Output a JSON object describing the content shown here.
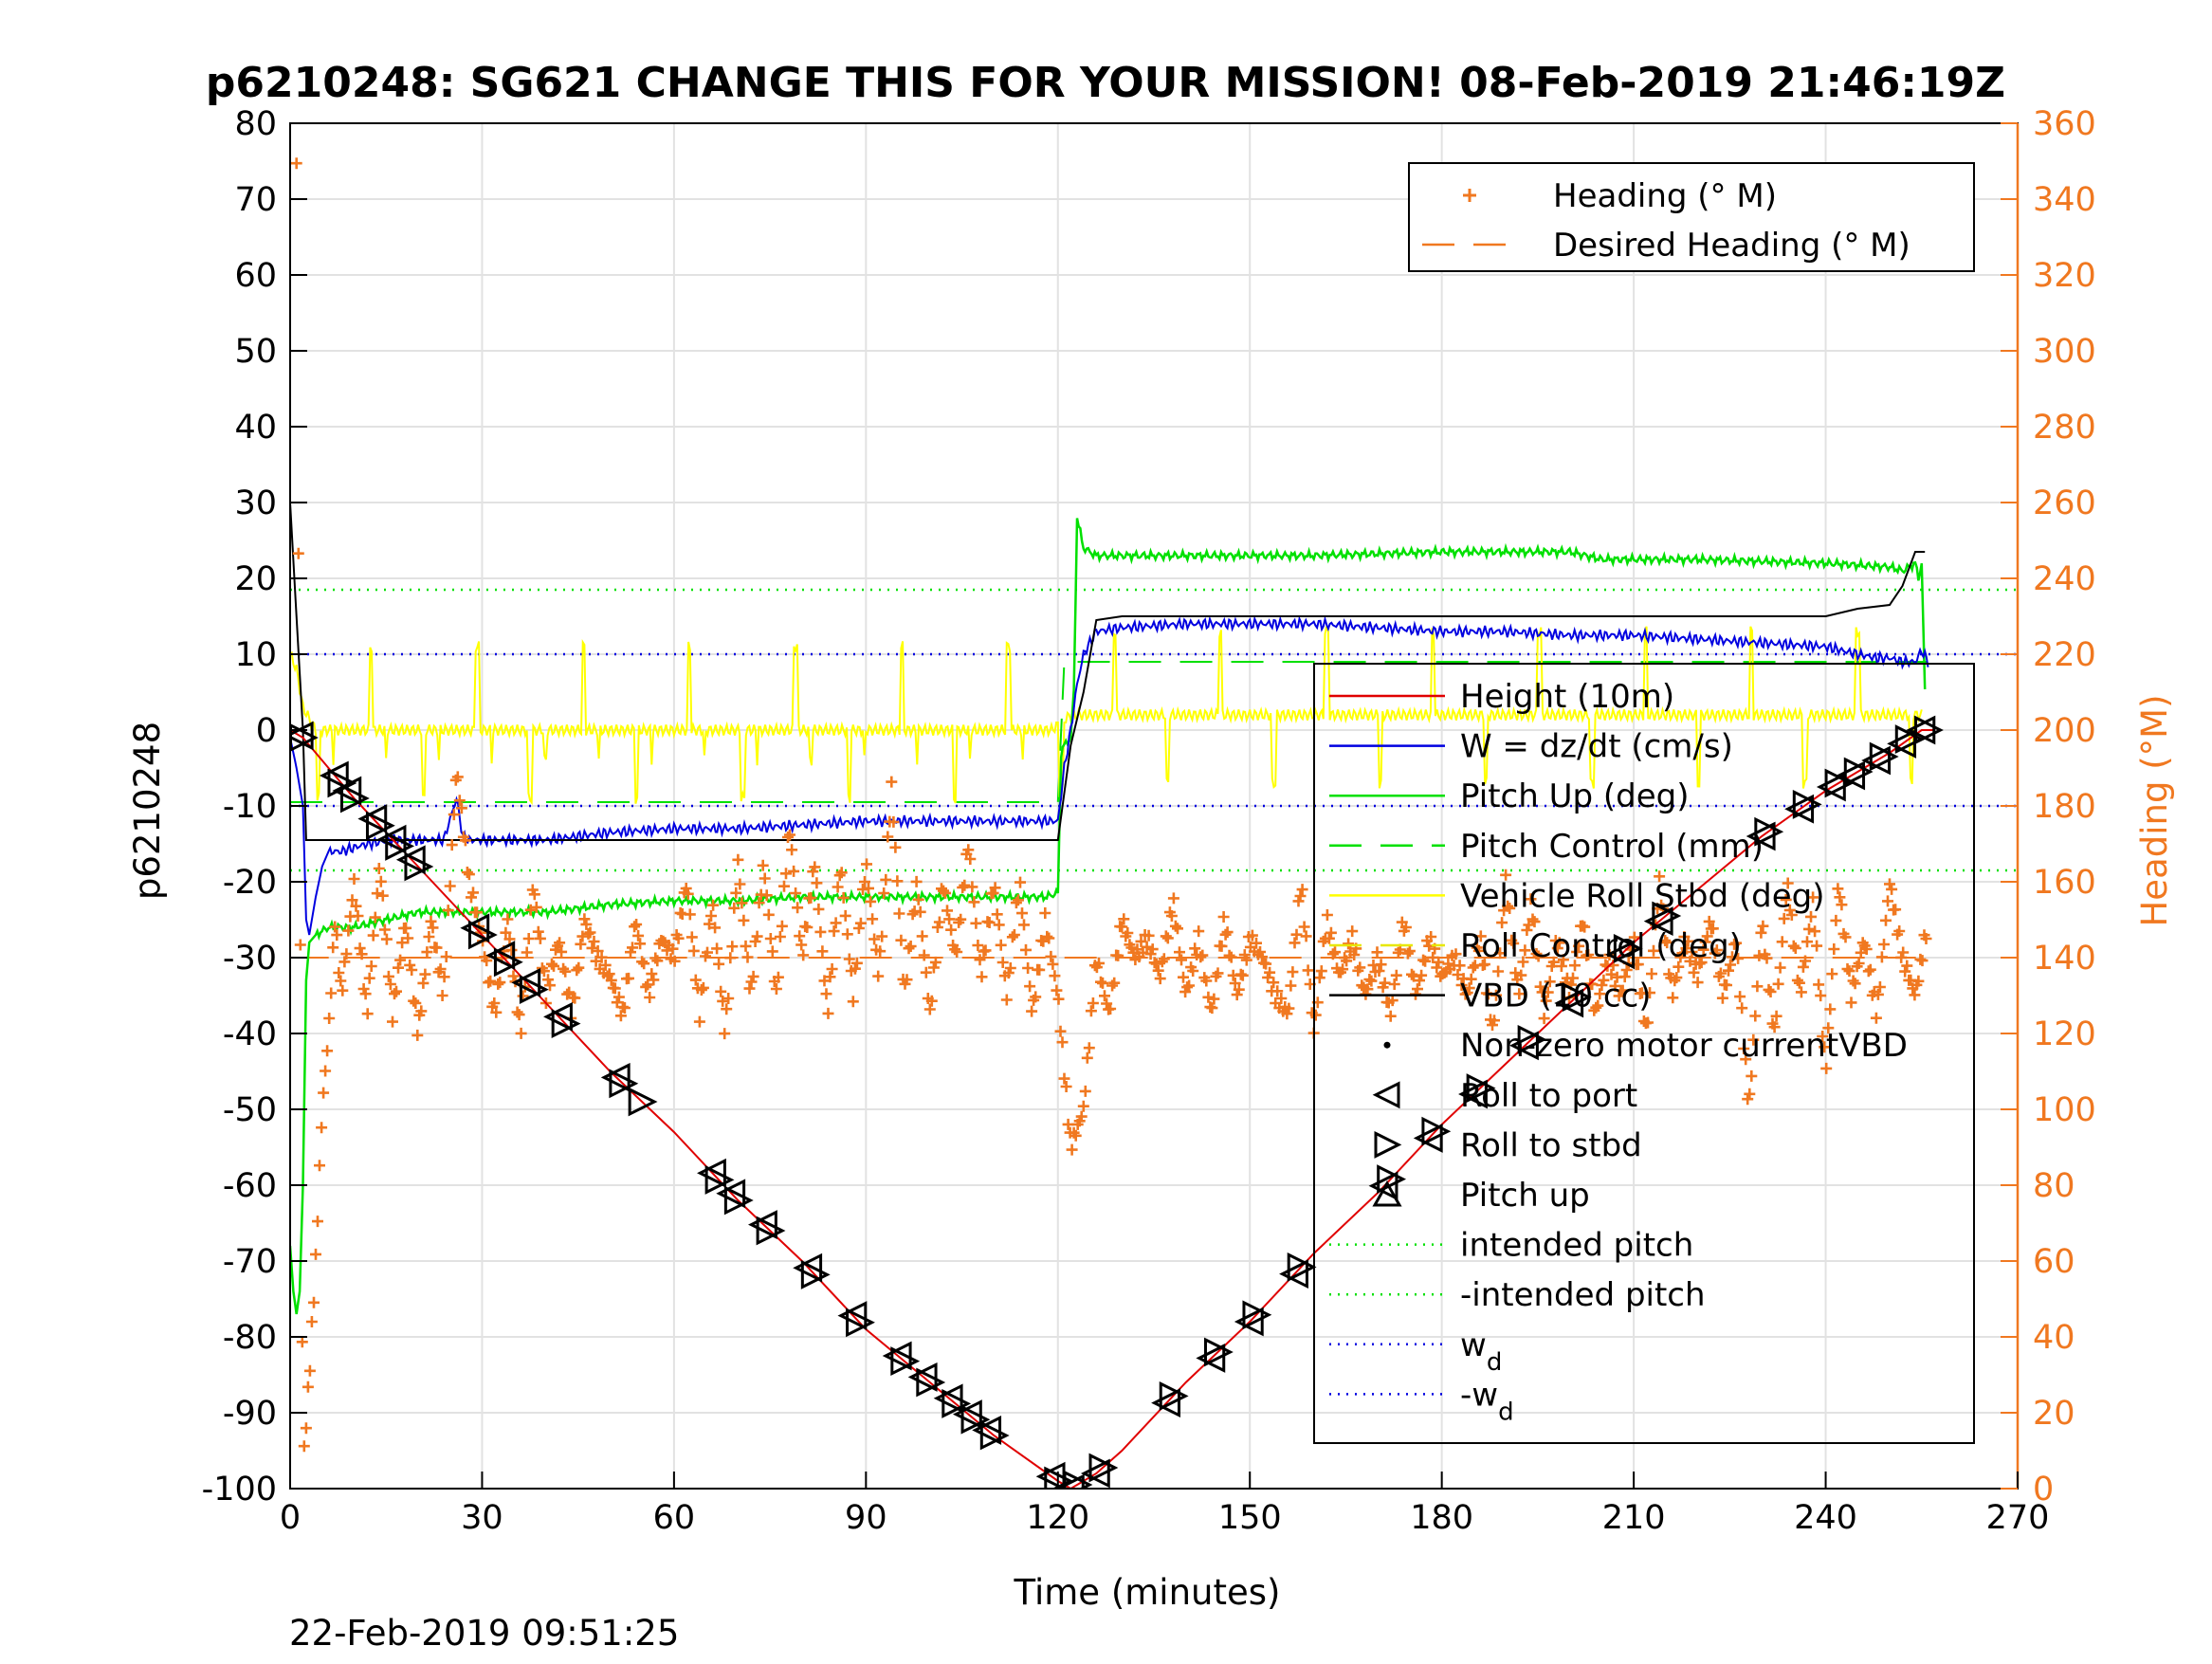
{
  "chart_data": {
    "type": "line",
    "title": "p6210248: SG621 CHANGE THIS FOR YOUR MISSION! 08-Feb-2019 21:46:19Z",
    "timestamp": "22-Feb-2019 09:51:25",
    "xlabel": "Time (minutes)",
    "ylabel": "p6210248",
    "y2label": "Heading (°M)",
    "xlim": [
      0,
      270
    ],
    "ylim": [
      -100,
      80
    ],
    "y2lim": [
      0,
      360
    ],
    "xticks": [
      0,
      30,
      60,
      90,
      120,
      150,
      180,
      210,
      240,
      270
    ],
    "yticks": [
      80,
      70,
      60,
      50,
      40,
      30,
      20,
      10,
      0,
      -10,
      -20,
      -30,
      -40,
      -50,
      -60,
      -70,
      -80,
      -90,
      -100
    ],
    "y2ticks": [
      360,
      340,
      320,
      300,
      280,
      260,
      240,
      220,
      200,
      180,
      160,
      140,
      120,
      100,
      80,
      60,
      40,
      20,
      0
    ],
    "grid": true,
    "colors": {
      "height": "#e00000",
      "w": "#0000e0",
      "pitch": "#00e000",
      "pitch_control": "#00e000",
      "roll": "#ffff00",
      "roll_control": "#e8e800",
      "vbd": "#000000",
      "heading": "#f07820",
      "intended_pitch": "#00e000",
      "wd": "#0000e0"
    },
    "legend_right_axis": [
      {
        "label": "Heading (° M)",
        "style": "plus",
        "color": "#f07820"
      },
      {
        "label": "Desired Heading (° M)",
        "style": "dash",
        "color": "#f07820"
      }
    ],
    "legend_right_axis_position": "top-right",
    "legend_left_axis": [
      {
        "label": "Height (10m)",
        "style": "solid",
        "color": "#e00000"
      },
      {
        "label": "W = dz/dt (cm/s)",
        "style": "solid",
        "color": "#0000e0"
      },
      {
        "label": "Pitch Up (deg)",
        "style": "solid",
        "color": "#00e000"
      },
      {
        "label": "Pitch Control (mm)",
        "style": "dash",
        "color": "#00e000"
      },
      {
        "label": "Vehicle Roll Stbd (deg)",
        "style": "solid",
        "color": "#ffff00"
      },
      {
        "label": "Roll Control (deg)",
        "style": "dash",
        "color": "#e8e800"
      },
      {
        "label": "VBD (10 cc)",
        "style": "solid",
        "color": "#000000"
      },
      {
        "label": "Non-zero motor currentVBD",
        "style": "dot",
        "color": "#000000"
      },
      {
        "label": "Roll to port",
        "style": "tri-left",
        "color": "#000000"
      },
      {
        "label": "Roll to stbd",
        "style": "tri-right",
        "color": "#000000"
      },
      {
        "label": "Pitch up",
        "style": "tri-up",
        "color": "#000000"
      },
      {
        "label": "intended pitch",
        "style": "dotted",
        "color": "#00e000"
      },
      {
        "label": "-intended pitch",
        "style": "dotted",
        "color": "#00e000"
      },
      {
        "label": "w",
        "sub": "d",
        "style": "dotted",
        "color": "#0000e0"
      },
      {
        "label": "-w",
        "sub": "d",
        "style": "dotted",
        "color": "#0000e0"
      }
    ],
    "legend_left_axis_position": "right",
    "series": {
      "height": {
        "x": [
          0,
          2,
          10,
          20,
          30,
          40,
          50,
          60,
          70,
          80,
          90,
          100,
          110,
          120,
          122,
          126,
          130,
          140,
          150,
          160,
          170,
          180,
          190,
          200,
          210,
          220,
          230,
          240,
          250,
          255,
          257
        ],
        "y": [
          0,
          -1,
          -9,
          -18,
          -27,
          -36,
          -45,
          -53,
          -62,
          -70,
          -79,
          -86,
          -93,
          -99,
          -100,
          -98,
          -95,
          -86,
          -78,
          -69,
          -61,
          -52,
          -44,
          -36,
          -28,
          -21,
          -14,
          -8,
          -3,
          0,
          0
        ]
      },
      "w": {
        "x": [
          0,
          1,
          2,
          2.5,
          3,
          4,
          5,
          6,
          8,
          12,
          16,
          20,
          24,
          26,
          27,
          28,
          32,
          40,
          50,
          60,
          70,
          80,
          90,
          100,
          110,
          118,
          120,
          121,
          122,
          123,
          124,
          126,
          130,
          140,
          150,
          160,
          170,
          180,
          190,
          200,
          210,
          220,
          230,
          240,
          245,
          248,
          250,
          252,
          254,
          255,
          256
        ],
        "y": [
          -1,
          -5,
          -10,
          -25,
          -27,
          -22,
          -18,
          -16,
          -16,
          -15,
          -14.5,
          -14.5,
          -14.5,
          -9,
          -14,
          -14.5,
          -14.5,
          -14.5,
          -13.5,
          -13,
          -13,
          -12.5,
          -12,
          -12,
          -12,
          -12,
          -12,
          -5,
          0,
          6,
          10,
          13,
          13.5,
          14,
          14,
          14,
          13.5,
          13,
          13,
          12.5,
          12.5,
          12,
          11.5,
          11,
          10,
          9.5,
          9.5,
          9,
          9,
          10.5,
          9
        ]
      },
      "pitch": {
        "x": [
          0,
          0.5,
          1,
          1.5,
          2,
          2.5,
          3,
          4,
          6,
          10,
          20,
          30,
          40,
          50,
          60,
          70,
          80,
          90,
          100,
          110,
          118,
          120,
          120.5,
          121,
          122,
          122.5,
          123,
          124,
          126,
          140,
          160,
          180,
          200,
          205,
          220,
          240,
          250,
          252,
          254,
          254.5,
          255,
          255.5
        ],
        "y": [
          -68,
          -74,
          -77,
          -74,
          -60,
          -33,
          -28,
          -27,
          -26,
          -26,
          -24,
          -24,
          -24,
          -23,
          -22.5,
          -22.5,
          -22,
          -22,
          -22,
          -22,
          -22,
          -21.5,
          -3,
          -2,
          -1,
          5,
          28,
          24,
          23,
          23,
          23,
          23.5,
          23.5,
          22.5,
          22.5,
          22,
          21.5,
          21,
          22,
          20,
          22,
          5
        ]
      },
      "pitch_control": {
        "x": [
          0,
          120,
          121,
          256
        ],
        "y": [
          -9.5,
          -9.5,
          9,
          9
        ]
      },
      "roll": {
        "x": [
          0,
          1,
          2,
          4,
          8,
          20,
          50,
          80,
          110,
          119,
          122,
          130,
          160,
          190,
          220,
          240,
          250,
          255
        ],
        "y": [
          10,
          8,
          3,
          0,
          0,
          0,
          0,
          0,
          0,
          0,
          2,
          2,
          2,
          2,
          2,
          2,
          2,
          2
        ]
      },
      "vbd": {
        "x": [
          0,
          1,
          2,
          2.5,
          120,
          122,
          124,
          126,
          130,
          150,
          200,
          240,
          245,
          250,
          252,
          254,
          255.5
        ],
        "y": [
          30,
          15,
          0,
          -14.5,
          -14.5,
          -2,
          5,
          14.5,
          15,
          15,
          15,
          15,
          16,
          16.5,
          19,
          23.5,
          23.5
        ]
      },
      "heading": {
        "x": [
          1,
          2,
          3,
          4,
          5,
          6,
          7,
          8,
          10,
          12,
          14,
          16,
          18,
          20,
          22,
          24,
          26,
          28,
          30,
          32,
          34,
          36,
          38,
          40,
          42,
          44,
          46,
          48,
          50,
          52,
          54,
          56,
          58,
          60,
          62,
          64,
          66,
          68,
          70,
          72,
          74,
          76,
          78,
          80,
          82,
          84,
          86,
          88,
          90,
          92,
          94,
          96,
          98,
          100,
          102,
          104,
          106,
          108,
          110,
          112,
          114,
          116,
          118,
          120,
          122,
          124,
          126,
          128,
          130,
          132,
          134,
          136,
          138,
          140,
          142,
          144,
          146,
          148,
          150,
          152,
          154,
          156,
          158,
          160,
          162,
          164,
          166,
          168,
          170,
          172,
          174,
          176,
          178,
          180,
          182,
          184,
          186,
          188,
          190,
          192,
          194,
          196,
          198,
          200,
          202,
          204,
          206,
          208,
          210,
          212,
          214,
          216,
          218,
          220,
          222,
          224,
          226,
          228,
          230,
          232,
          234,
          236,
          238,
          240,
          242,
          244,
          246,
          248,
          250,
          252,
          254,
          256
        ],
        "y": [
          350,
          5,
          30,
          60,
          100,
          120,
          150,
          130,
          160,
          125,
          165,
          125,
          150,
          120,
          150,
          130,
          190,
          160,
          145,
          125,
          150,
          120,
          160,
          130,
          145,
          125,
          150,
          140,
          135,
          125,
          150,
          130,
          145,
          140,
          160,
          125,
          155,
          120,
          165,
          130,
          165,
          130,
          175,
          140,
          165,
          125,
          165,
          130,
          165,
          135,
          185,
          130,
          160,
          125,
          160,
          140,
          170,
          135,
          160,
          130,
          160,
          125,
          150,
          130,
          90,
          100,
          140,
          125,
          150,
          140,
          145,
          135,
          155,
          130,
          145,
          125,
          150,
          130,
          145,
          140,
          130,
          125,
          160,
          120,
          150,
          135,
          145,
          130,
          140,
          125,
          150,
          130,
          145,
          135,
          140,
          130,
          145,
          120,
          160,
          130,
          155,
          125,
          145,
          130,
          150,
          125,
          140,
          130,
          145,
          120,
          160,
          130,
          145,
          135,
          150,
          130,
          145,
          100,
          150,
          120,
          160,
          130,
          155,
          110,
          160,
          130,
          145,
          125,
          160,
          140,
          130,
          150
        ]
      },
      "desired_heading": {
        "x": [
          1,
          256
        ],
        "y": [
          140,
          140
        ]
      },
      "intended_pitch": {
        "y": [
          18.5,
          -18.5
        ]
      },
      "wd": {
        "y": [
          10,
          -10
        ]
      },
      "roll_to_port_x": [
        1.5,
        7,
        9,
        13,
        16,
        19,
        29,
        33,
        37,
        42,
        51,
        66,
        69,
        74,
        81,
        88,
        95,
        99,
        103,
        106,
        109,
        119,
        122,
        126,
        137,
        144,
        150,
        157,
        171,
        178,
        185,
        193,
        200,
        208,
        214,
        230,
        236,
        241,
        244,
        248,
        252,
        255
      ],
      "roll_to_stbd_x": [
        2,
        8,
        10,
        14,
        17,
        20,
        30,
        34,
        38,
        43,
        52,
        55,
        67,
        70,
        75,
        82,
        89,
        96,
        100,
        104,
        107,
        110,
        120,
        123,
        127,
        138,
        145,
        151,
        158,
        172,
        179,
        186,
        194,
        201,
        209,
        215,
        231,
        237,
        242,
        245,
        249,
        253,
        256
      ]
    }
  }
}
